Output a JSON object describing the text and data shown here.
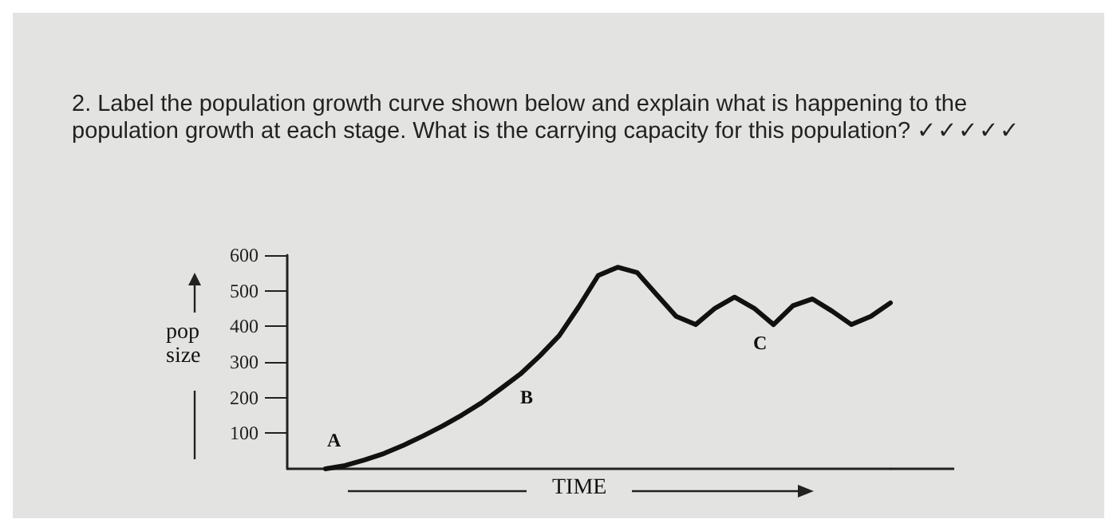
{
  "chart_data": {
    "type": "line",
    "title": "2. Label the population growth curve shown below and explain what is happening to the\npopulation growth at each stage. What is the carrying capacity for this population? ✓✓✓✓✓",
    "xlabel": "TIME",
    "ylabel": "pop\nsize",
    "categories": [
      null,
      null,
      null,
      null,
      null,
      null,
      null,
      null,
      null,
      null,
      null,
      null,
      null,
      null,
      null,
      null,
      null,
      null,
      null,
      null,
      null,
      null,
      null,
      null,
      null,
      null,
      null,
      null,
      null,
      null
    ],
    "series": [
      {
        "color": "#111111",
        "values": [
          0,
          9,
          25,
          43,
          66,
          92,
          120,
          151,
          185,
          225,
          266,
          317,
          374,
          455,
          543,
          566,
          551,
          489,
          428,
          405,
          451,
          482,
          451,
          405,
          458,
          477,
          443,
          405,
          428,
          466
        ]
      }
    ],
    "ylim": [
      0,
      600
    ],
    "yticks": [
      100,
      200,
      300,
      400,
      500,
      600
    ],
    "tick_labels": "y",
    "grid": false,
    "marker": "none",
    "line_style": "solid",
    "annotations": [
      "A",
      "B",
      "C"
    ]
  }
}
